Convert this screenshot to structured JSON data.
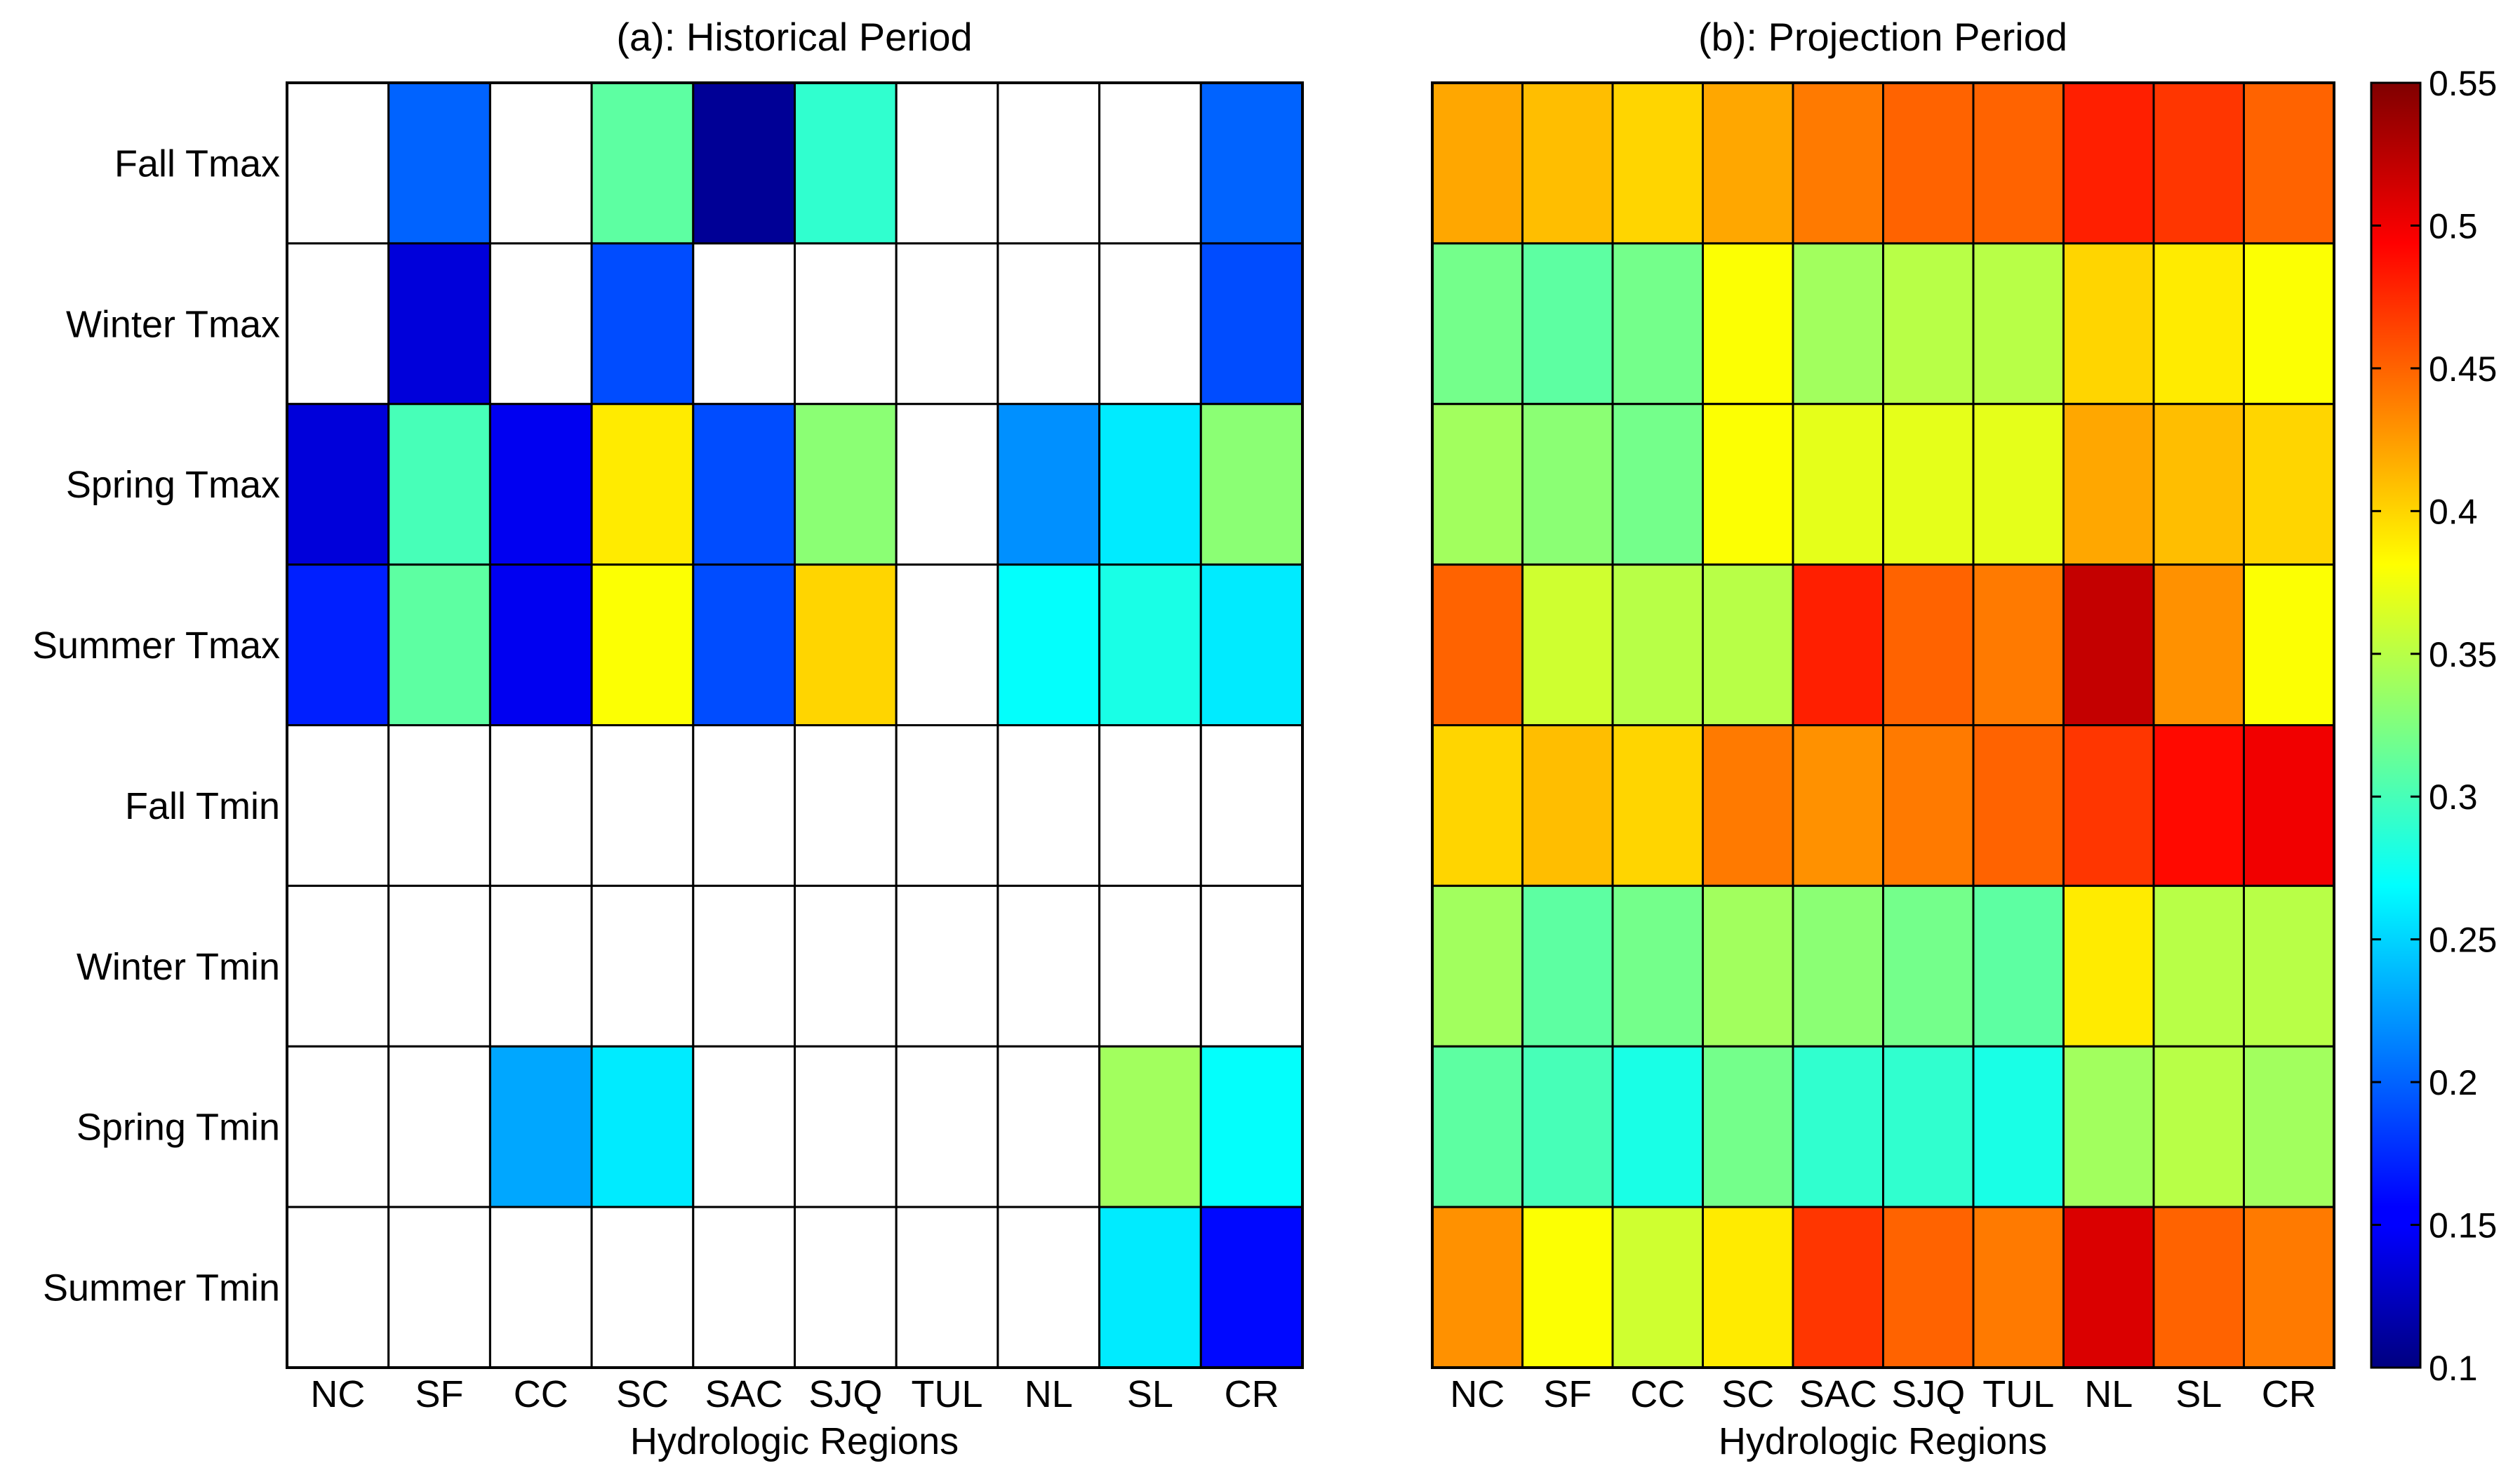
{
  "chart_data": [
    {
      "type": "heatmap",
      "title": "(a): Historical Period",
      "xlabel": "Hydrologic Regions",
      "ylabel": "",
      "x": [
        "NC",
        "SF",
        "CC",
        "SC",
        "SAC",
        "SJQ",
        "TUL",
        "NL",
        "SL",
        "CR"
      ],
      "y": [
        "Fall Tmax",
        "Winter Tmax",
        "Spring Tmax",
        "Summer Tmax",
        "Fall Tmin",
        "Winter Tmin",
        "Spring Tmin",
        "Summer Tmin"
      ],
      "values": [
        [
          null,
          0.2,
          null,
          0.31,
          0.11,
          0.29,
          null,
          null,
          null,
          0.2
        ],
        [
          null,
          0.14,
          null,
          0.19,
          null,
          null,
          null,
          null,
          null,
          0.19
        ],
        [
          0.14,
          0.3,
          0.15,
          0.39,
          0.19,
          0.33,
          null,
          0.22,
          0.26,
          0.33
        ],
        [
          0.17,
          0.31,
          0.15,
          0.38,
          0.19,
          0.4,
          null,
          0.27,
          0.28,
          0.26
        ],
        [
          null,
          null,
          null,
          null,
          null,
          null,
          null,
          null,
          null,
          null
        ],
        [
          null,
          null,
          null,
          null,
          null,
          null,
          null,
          null,
          null,
          null
        ],
        [
          null,
          null,
          0.23,
          0.26,
          null,
          null,
          null,
          null,
          0.34,
          0.27
        ],
        [
          null,
          null,
          null,
          null,
          null,
          null,
          null,
          null,
          0.26,
          0.16
        ]
      ],
      "missing_color": "#ffffff"
    },
    {
      "type": "heatmap",
      "title": "(b): Projection Period",
      "xlabel": "Hydrologic Regions",
      "ylabel": "",
      "x": [
        "NC",
        "SF",
        "CC",
        "SC",
        "SAC",
        "SJQ",
        "TUL",
        "NL",
        "SL",
        "CR"
      ],
      "y": [
        "Fall Tmax",
        "Winter Tmax",
        "Spring Tmax",
        "Summer Tmax",
        "Fall Tmin",
        "Winter Tmin",
        "Spring Tmin",
        "Summer Tmin"
      ],
      "values": [
        [
          0.42,
          0.41,
          0.4,
          0.42,
          0.44,
          0.45,
          0.45,
          0.48,
          0.47,
          0.45
        ],
        [
          0.32,
          0.31,
          0.32,
          0.38,
          0.34,
          0.35,
          0.35,
          0.4,
          0.39,
          0.38
        ],
        [
          0.34,
          0.33,
          0.32,
          0.38,
          0.37,
          0.37,
          0.37,
          0.42,
          0.41,
          0.4
        ],
        [
          0.45,
          0.36,
          0.35,
          0.35,
          0.48,
          0.45,
          0.44,
          0.52,
          0.43,
          0.38
        ],
        [
          0.4,
          0.41,
          0.4,
          0.44,
          0.43,
          0.44,
          0.45,
          0.47,
          0.49,
          0.5
        ],
        [
          0.34,
          0.31,
          0.32,
          0.34,
          0.33,
          0.32,
          0.31,
          0.39,
          0.35,
          0.35
        ],
        [
          0.31,
          0.3,
          0.28,
          0.32,
          0.29,
          0.29,
          0.28,
          0.34,
          0.35,
          0.34
        ],
        [
          0.43,
          0.38,
          0.36,
          0.39,
          0.47,
          0.45,
          0.44,
          0.51,
          0.45,
          0.44
        ]
      ]
    }
  ],
  "colorbar": {
    "min": 0.1,
    "max": 0.55,
    "ticks": [
      0.1,
      0.15,
      0.2,
      0.25,
      0.3,
      0.35,
      0.4,
      0.45,
      0.5,
      0.55
    ],
    "tick_labels": [
      "0.1",
      "0.15",
      "0.2",
      "0.25",
      "0.3",
      "0.35",
      "0.4",
      "0.45",
      "0.5",
      "0.55"
    ],
    "colormap": "jet"
  }
}
